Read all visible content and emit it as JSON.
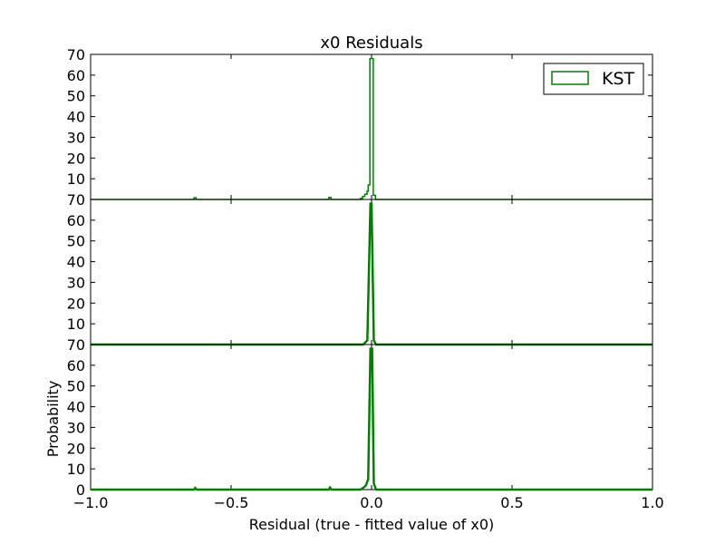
{
  "chart_data": {
    "type": "histogram",
    "title": "x0 Residuals",
    "xlabel": "Residual (true - fitted value of x0)",
    "ylabel": "Probability",
    "xlim": [
      -1.0,
      1.0
    ],
    "ylim": [
      0,
      70
    ],
    "x_ticks": [
      "−1.0",
      "−0.5",
      "0.0",
      "0.5",
      "1.0"
    ],
    "y_ticks": [
      "0",
      "10",
      "20",
      "30",
      "40",
      "50",
      "60",
      "70"
    ],
    "color": "#008000",
    "legend": {
      "label": "KST",
      "position": "upper right"
    },
    "panels": [
      {
        "style": "step",
        "points": [
          [
            -1.0,
            0
          ],
          [
            -0.632,
            0
          ],
          [
            -0.632,
            0.8
          ],
          [
            -0.625,
            0.8
          ],
          [
            -0.625,
            0
          ],
          [
            -0.152,
            0
          ],
          [
            -0.152,
            1.0
          ],
          [
            -0.145,
            1.0
          ],
          [
            -0.145,
            0
          ],
          [
            -0.04,
            0
          ],
          [
            -0.04,
            0.5
          ],
          [
            -0.032,
            0.5
          ],
          [
            -0.032,
            1.5
          ],
          [
            -0.024,
            1.5
          ],
          [
            -0.024,
            2.5
          ],
          [
            -0.016,
            2.5
          ],
          [
            -0.016,
            4
          ],
          [
            -0.012,
            4
          ],
          [
            -0.012,
            7
          ],
          [
            -0.006,
            7
          ],
          [
            -0.006,
            68
          ],
          [
            0.006,
            68
          ],
          [
            0.006,
            2
          ],
          [
            0.014,
            2
          ],
          [
            0.014,
            0
          ],
          [
            1.0,
            0
          ]
        ]
      },
      {
        "style": "line",
        "points": [
          [
            -1.0,
            0
          ],
          [
            -0.03,
            0
          ],
          [
            -0.015,
            2
          ],
          [
            -0.004,
            68
          ],
          [
            0.0,
            68
          ],
          [
            0.008,
            2
          ],
          [
            0.016,
            0
          ],
          [
            1.0,
            0
          ]
        ]
      },
      {
        "style": "line",
        "points": [
          [
            -1.0,
            0
          ],
          [
            -0.632,
            0
          ],
          [
            -0.628,
            0.8
          ],
          [
            -0.622,
            0
          ],
          [
            -0.152,
            0
          ],
          [
            -0.148,
            1.0
          ],
          [
            -0.142,
            0
          ],
          [
            -0.04,
            0
          ],
          [
            -0.03,
            0.8
          ],
          [
            -0.02,
            2
          ],
          [
            -0.012,
            5
          ],
          [
            -0.004,
            68
          ],
          [
            0.002,
            68
          ],
          [
            0.008,
            3
          ],
          [
            0.016,
            0
          ],
          [
            1.0,
            0
          ]
        ]
      }
    ]
  }
}
